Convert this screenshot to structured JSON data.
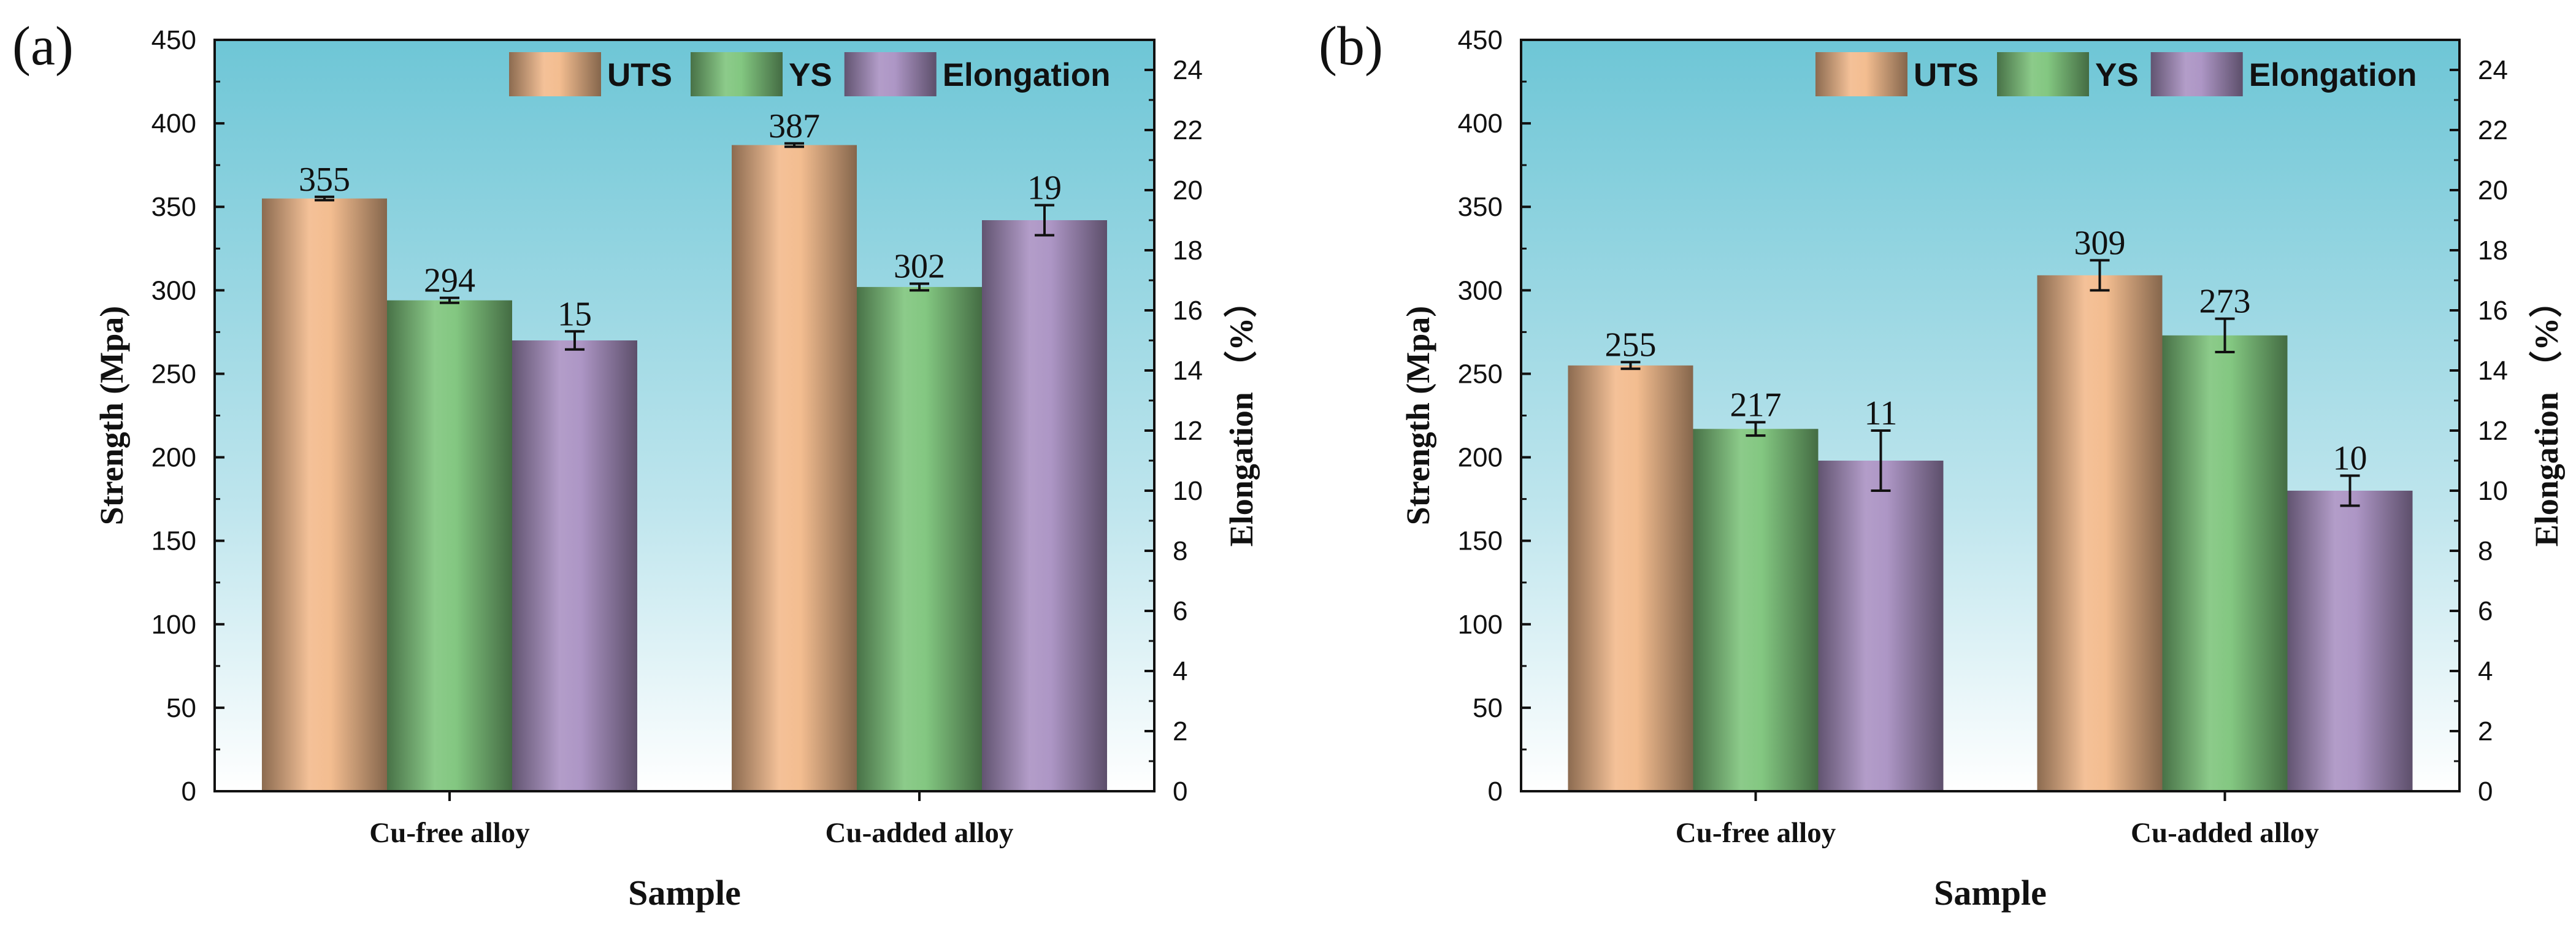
{
  "colors": {
    "uts": "#f2b98a",
    "ys": "#7cc47a",
    "elongation": "#a990c2",
    "bg_top": "#6ec6d6",
    "bg_bottom": "#ffffff"
  },
  "chart_data": [
    {
      "type": "bar",
      "panel_label": "(a)",
      "categories": [
        "Cu-free alloy",
        "Cu-added alloy"
      ],
      "xlabel": "Sample",
      "ylabel": "Strength (Mpa)",
      "y2label": "Elongation （%）",
      "ylim": [
        0,
        450
      ],
      "y2lim": [
        0,
        25
      ],
      "yticks": [
        "0",
        "50",
        "100",
        "150",
        "200",
        "250",
        "300",
        "350",
        "400",
        "450"
      ],
      "y2ticks": [
        "0",
        "2",
        "4",
        "6",
        "8",
        "10",
        "12",
        "14",
        "16",
        "18",
        "20",
        "22",
        "24"
      ],
      "legend_position": "top-right",
      "series": [
        {
          "name": "UTS",
          "axis": "left",
          "values": [
            355,
            387
          ],
          "errors": [
            1,
            1
          ],
          "labels": [
            "355",
            "387"
          ]
        },
        {
          "name": "YS",
          "axis": "left",
          "values": [
            294,
            302
          ],
          "errors": [
            1.5,
            2
          ],
          "labels": [
            "294",
            "302"
          ]
        },
        {
          "name": "Elongation",
          "axis": "right",
          "values": [
            15,
            19
          ],
          "errors": [
            0.3,
            0.5
          ],
          "labels": [
            "15",
            "19"
          ]
        }
      ]
    },
    {
      "type": "bar",
      "panel_label": "(b)",
      "categories": [
        "Cu-free alloy",
        "Cu-added alloy"
      ],
      "xlabel": "Sample",
      "ylabel": "Strength (Mpa)",
      "y2label": "Elongation （%）",
      "ylim": [
        0,
        450
      ],
      "y2lim": [
        0,
        25
      ],
      "yticks": [
        "0",
        "50",
        "100",
        "150",
        "200",
        "250",
        "300",
        "350",
        "400",
        "450"
      ],
      "y2ticks": [
        "0",
        "2",
        "4",
        "6",
        "8",
        "10",
        "12",
        "14",
        "16",
        "18",
        "20",
        "22",
        "24"
      ],
      "legend_position": "top-right",
      "series": [
        {
          "name": "UTS",
          "axis": "left",
          "values": [
            255,
            309
          ],
          "errors": [
            2,
            9
          ],
          "labels": [
            "255",
            "309"
          ]
        },
        {
          "name": "YS",
          "axis": "left",
          "values": [
            217,
            273
          ],
          "errors": [
            4,
            10
          ],
          "labels": [
            "217",
            "273"
          ]
        },
        {
          "name": "Elongation",
          "axis": "right",
          "values": [
            11,
            10
          ],
          "errors": [
            1,
            0.5
          ],
          "labels": [
            "11",
            "10"
          ]
        }
      ]
    }
  ]
}
